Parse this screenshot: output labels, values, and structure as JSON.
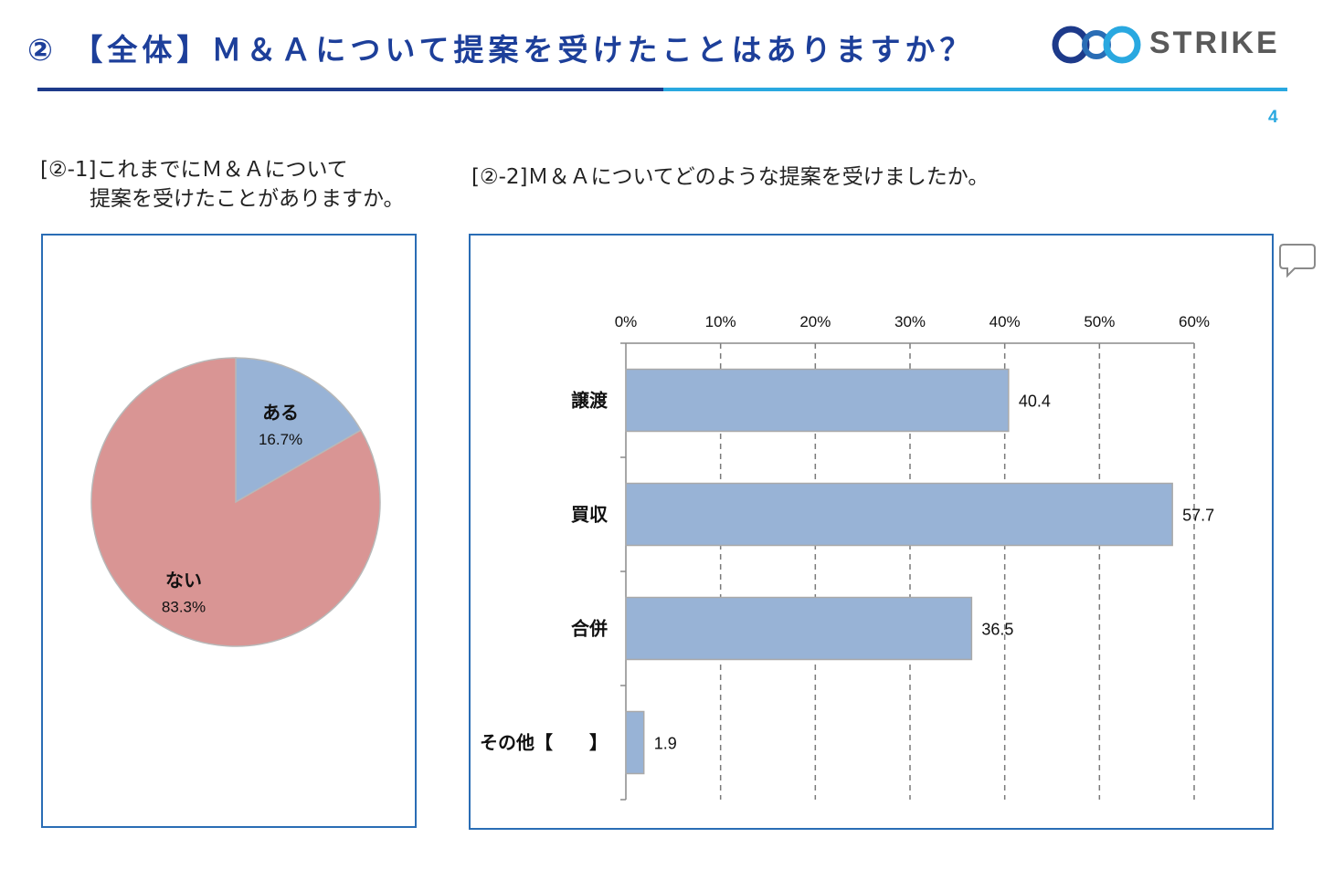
{
  "header": {
    "title": "② 【全体】Ｍ＆Ａについて提案を受けたことはありますか？",
    "logo_text": "STRIKE",
    "page_number": "4"
  },
  "questions": {
    "q1_line1": "[②-1]これまでにＭ＆Ａについて",
    "q1_line2": "提案を受けたことがありますか。",
    "q2": "[②-2]Ｍ＆Ａについてどのような提案を受けましたか。"
  },
  "colors": {
    "title": "#1d3f9a",
    "accent_dark": "#1d3a8a",
    "accent_light": "#29a8e0",
    "pie_yes": "#98b3d6",
    "pie_no": "#d99594",
    "bar": "#98b3d6"
  },
  "chart_data": [
    {
      "type": "pie",
      "slices": [
        {
          "label": "ある",
          "value": 16.7,
          "value_label": "16.7%"
        },
        {
          "label": "ない",
          "value": 83.3,
          "value_label": "83.3%"
        }
      ]
    },
    {
      "type": "bar",
      "orientation": "horizontal",
      "categories": [
        "譲渡",
        "買収",
        "合併",
        "その他【　　】"
      ],
      "values": [
        40.4,
        57.7,
        36.5,
        1.9
      ],
      "value_labels": [
        "40.4",
        "57.7",
        "36.5",
        "1.9"
      ],
      "xlim": [
        0,
        60
      ],
      "x_ticks": [
        "0%",
        "10%",
        "20%",
        "30%",
        "40%",
        "50%",
        "60%"
      ],
      "grid": "dashed vertical"
    }
  ]
}
